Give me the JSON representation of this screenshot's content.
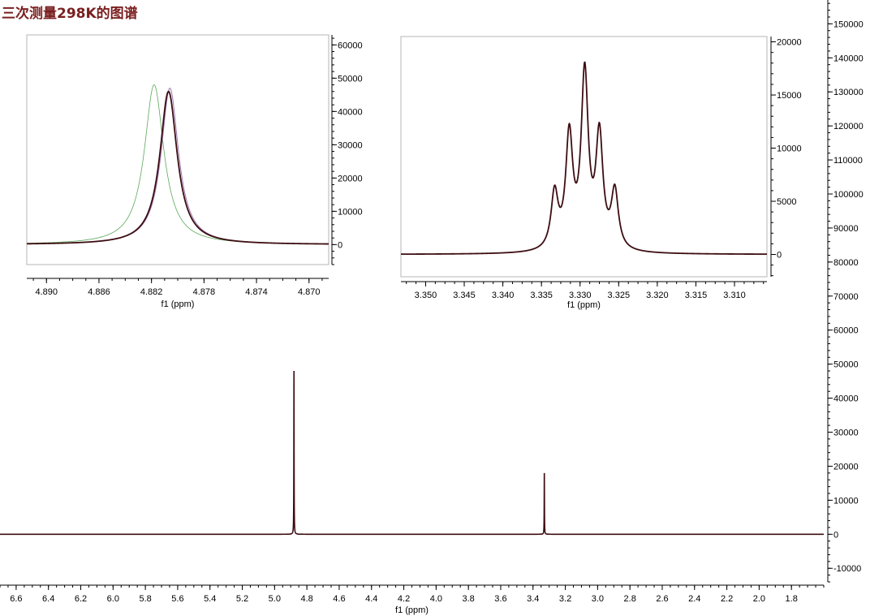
{
  "title": "三次测量298K的图谱",
  "colors": {
    "title": "#7a1f1f",
    "spectrum": "#3d0d12",
    "overlay_green": "#5aa85a",
    "overlay_purple": "#9a78b0",
    "axis": "#000000",
    "frame": "#b5b5b5"
  },
  "chart_data": [
    {
      "id": "main",
      "type": "line",
      "xlabel": "f1 (ppm)",
      "xlim": [
        6.7,
        1.6
      ],
      "ylim": [
        -14000,
        157000
      ],
      "x_ticks": [
        "6.6",
        "6.4",
        "6.2",
        "6.0",
        "5.8",
        "5.6",
        "5.4",
        "5.2",
        "5.0",
        "4.8",
        "4.6",
        "4.4",
        "4.2",
        "4.0",
        "3.8",
        "3.6",
        "3.4",
        "3.2",
        "3.0",
        "2.8",
        "2.6",
        "2.4",
        "2.2",
        "2.0",
        "1.8"
      ],
      "y_ticks": [
        "-10000",
        "0",
        "10000",
        "20000",
        "30000",
        "40000",
        "50000",
        "60000",
        "70000",
        "80000",
        "90000",
        "100000",
        "110000",
        "120000",
        "130000",
        "140000",
        "150000"
      ],
      "peaks": [
        {
          "x": 4.88,
          "y": 48000
        },
        {
          "x": 3.33,
          "y": 18000
        }
      ]
    },
    {
      "id": "inset-left",
      "type": "line",
      "xlabel": "f1 (ppm)",
      "xlim": [
        4.8915,
        4.8685
      ],
      "ylim": [
        -6000,
        63000
      ],
      "x_ticks": [
        "4.890",
        "4.886",
        "4.882",
        "4.878",
        "4.874",
        "4.870"
      ],
      "y_ticks": [
        "0",
        "10000",
        "20000",
        "30000",
        "40000",
        "50000",
        "60000"
      ],
      "series": [
        {
          "color": "green",
          "center": 4.8818,
          "height": 48000,
          "width": 0.0009
        },
        {
          "color": "purple",
          "center": 4.8806,
          "height": 47000,
          "width": 0.0008
        },
        {
          "color": "dark",
          "center": 4.8807,
          "height": 46000,
          "width": 0.0008
        }
      ]
    },
    {
      "id": "inset-right",
      "type": "line",
      "xlabel": "f1 (ppm)",
      "xlim": [
        3.3532,
        3.3058
      ],
      "ylim": [
        -2100,
        20500
      ],
      "x_ticks": [
        "3.350",
        "3.345",
        "3.340",
        "3.335",
        "3.330",
        "3.325",
        "3.320",
        "3.315",
        "3.310"
      ],
      "y_ticks": [
        "0",
        "5000",
        "10000",
        "15000",
        "20000"
      ],
      "peaks": [
        {
          "x": 3.3333,
          "y": 6500
        },
        {
          "x": 3.3314,
          "y": 12300
        },
        {
          "x": 3.3294,
          "y": 18100
        },
        {
          "x": 3.3275,
          "y": 12400
        },
        {
          "x": 3.3255,
          "y": 6600
        }
      ]
    }
  ]
}
